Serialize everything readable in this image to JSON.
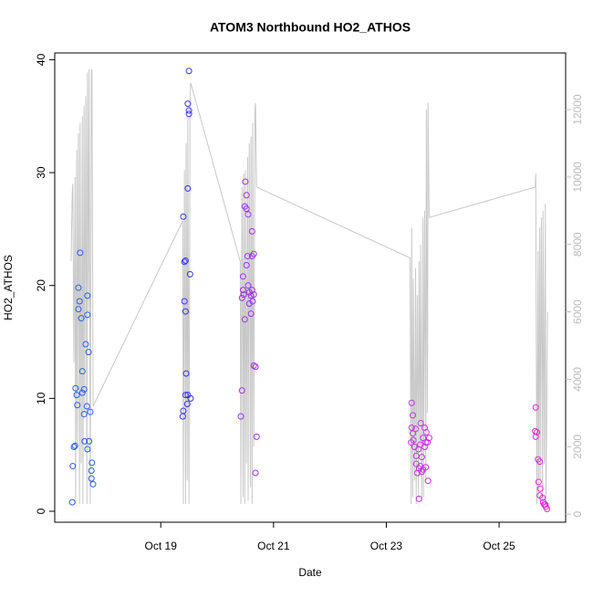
{
  "chart_data": {
    "type": "scatter",
    "title": "ATOM3 Northbound HO2_ATHOS",
    "x_label": "Date",
    "y_label": "HO2_ATHOS",
    "xlim": [
      17.12,
      26.18
    ],
    "ylim": [
      -0.97,
      40.6
    ],
    "y2lim": [
      -240,
      13680
    ],
    "xticks": [
      {
        "value": 19,
        "label": "Oct 19"
      },
      {
        "value": 21,
        "label": "Oct 21"
      },
      {
        "value": 23,
        "label": "Oct 23"
      },
      {
        "value": 25,
        "label": "Oct 25"
      }
    ],
    "yticks": [
      0,
      10,
      20,
      30,
      40
    ],
    "y2ticks": [
      0,
      2000,
      4000,
      6000,
      8000,
      10000,
      12000
    ],
    "series": [
      {
        "type": "line",
        "axis": "y2",
        "color": "#c8c8c8",
        "x": [
          17.41,
          17.43,
          17.44,
          17.46,
          17.48,
          17.49,
          17.51,
          17.52,
          17.54,
          17.56,
          17.57,
          17.59,
          17.61,
          17.62,
          17.64,
          17.65,
          17.67,
          17.69,
          17.7,
          17.72,
          17.73,
          17.75,
          17.77,
          17.78,
          17.8,
          19.39,
          19.4,
          19.42,
          19.44,
          19.45,
          19.47,
          19.48,
          19.5,
          19.52,
          19.53,
          20.41,
          20.42,
          20.44,
          20.46,
          20.47,
          20.49,
          20.5,
          20.52,
          20.54,
          20.55,
          20.57,
          20.59,
          20.6,
          20.62,
          20.63,
          20.65,
          20.67,
          20.68,
          20.7,
          23.42,
          23.44,
          23.45,
          23.47,
          23.48,
          23.5,
          23.52,
          23.53,
          23.55,
          23.57,
          23.58,
          23.6,
          23.61,
          23.63,
          23.65,
          23.66,
          23.68,
          23.7,
          23.71,
          23.73,
          23.74,
          23.76,
          25.64,
          25.65,
          25.67,
          25.69,
          25.7,
          25.72,
          25.73,
          25.75,
          25.77,
          25.78,
          25.8,
          25.82,
          25.83,
          25.86
        ],
        "values": [
          7500,
          9500,
          9800,
          4500,
          10000,
          300,
          10800,
          2000,
          11300,
          300,
          11600,
          1500,
          11800,
          300,
          12100,
          3000,
          12400,
          300,
          13100,
          6000,
          13200,
          300,
          13100,
          13200,
          3200,
          8700,
          300,
          10200,
          300,
          11000,
          1000,
          11800,
          300,
          12200,
          12800,
          7500,
          300,
          9700,
          500,
          10100,
          300,
          10200,
          1500,
          10600,
          400,
          11000,
          800,
          11200,
          300,
          11600,
          2000,
          12000,
          12200,
          9700,
          7600,
          300,
          8500,
          500,
          7000,
          1000,
          7300,
          300,
          6500,
          500,
          7500,
          2000,
          8000,
          400,
          8800,
          500,
          9000,
          1000,
          12000,
          3000,
          12200,
          8800,
          9700,
          10100,
          300,
          7800,
          500,
          8500,
          1000,
          8800,
          300,
          9000,
          1500,
          9200,
          300,
          6000
        ]
      },
      {
        "type": "scatter",
        "color": "#2a5ee8",
        "x": [
          17.43,
          17.44,
          17.46,
          17.48,
          17.49,
          17.51,
          17.52,
          17.54,
          17.56,
          17.54,
          17.57,
          17.59,
          17.61,
          17.61,
          17.64,
          17.64,
          17.65,
          17.67,
          17.69,
          17.7,
          17.7,
          17.7,
          17.72,
          17.73,
          17.75,
          17.77,
          17.78,
          17.77,
          17.8
        ],
        "values": [
          0.8,
          4.0,
          5.7,
          5.8,
          10.9,
          10.3,
          9.4,
          19.8,
          18.6,
          17.9,
          22.9,
          17.1,
          12.4,
          10.5,
          10.8,
          8.6,
          6.2,
          14.8,
          9.3,
          5.5,
          19.1,
          17.4,
          14.1,
          6.2,
          8.8,
          3.6,
          4.3,
          2.9,
          2.4
        ]
      },
      {
        "type": "scatter",
        "color": "#3a34f2",
        "x": [
          19.4,
          19.42,
          19.44,
          19.5,
          19.48,
          19.5,
          19.5,
          19.48,
          19.42,
          19.44,
          19.52,
          19.45,
          19.44,
          19.48,
          19.47,
          19.53,
          19.4,
          19.39
        ],
        "values": [
          26.1,
          22.1,
          22.2,
          39.0,
          36.1,
          35.5,
          35.2,
          28.6,
          18.6,
          17.7,
          21.0,
          12.2,
          10.3,
          10.3,
          9.5,
          10.0,
          8.9,
          8.4
        ]
      },
      {
        "type": "scatter",
        "color": "#a030f0",
        "x": [
          20.42,
          20.44,
          20.46,
          20.46,
          20.44,
          20.47,
          20.49,
          20.5,
          20.49,
          20.52,
          20.52,
          20.55,
          20.54,
          20.52,
          20.55,
          20.57,
          20.6,
          20.57,
          20.62,
          20.62,
          20.65,
          20.6,
          20.63,
          20.62,
          20.65,
          20.65,
          20.68,
          20.7,
          20.68
        ],
        "values": [
          8.4,
          10.7,
          20.8,
          19.6,
          18.9,
          19.2,
          17.0,
          29.2,
          27.0,
          26.8,
          28.0,
          26.3,
          22.6,
          21.8,
          20.0,
          19.4,
          19.1,
          18.4,
          24.8,
          22.6,
          22.8,
          17.5,
          18.6,
          19.6,
          19.2,
          12.9,
          12.8,
          6.6,
          3.4
        ]
      },
      {
        "type": "scatter",
        "color": "#c534e0",
        "x": [
          23.45,
          23.47,
          23.45,
          23.47,
          23.44,
          23.48,
          23.52,
          23.5,
          23.53,
          23.53,
          23.55,
          23.58,
          23.57,
          23.6,
          23.58,
          23.6,
          23.61,
          23.63,
          23.65,
          23.65,
          23.68,
          23.7,
          23.68,
          23.71,
          23.73,
          23.74,
          23.76,
          23.63,
          23.7
        ],
        "values": [
          9.6,
          8.5,
          7.4,
          6.9,
          6.1,
          6.3,
          7.3,
          5.7,
          4.9,
          4.2,
          3.4,
          3.8,
          5.5,
          4.0,
          1.1,
          5.9,
          7.8,
          4.8,
          6.5,
          3.7,
          5.7,
          6.1,
          7.4,
          7.0,
          6.1,
          2.7,
          6.5,
          3.5,
          3.9
        ]
      },
      {
        "type": "scatter",
        "color": "#e02ad0",
        "x": [
          25.65,
          25.64,
          25.67,
          25.65,
          25.69,
          25.72,
          25.7,
          25.73,
          25.72,
          25.77,
          25.78,
          25.8,
          25.83,
          25.85,
          25.82
        ],
        "values": [
          9.2,
          7.1,
          7.0,
          6.6,
          4.6,
          4.4,
          2.6,
          2.0,
          1.4,
          1.2,
          0.8,
          0.6,
          0.4,
          0.2,
          0.6
        ]
      }
    ]
  }
}
